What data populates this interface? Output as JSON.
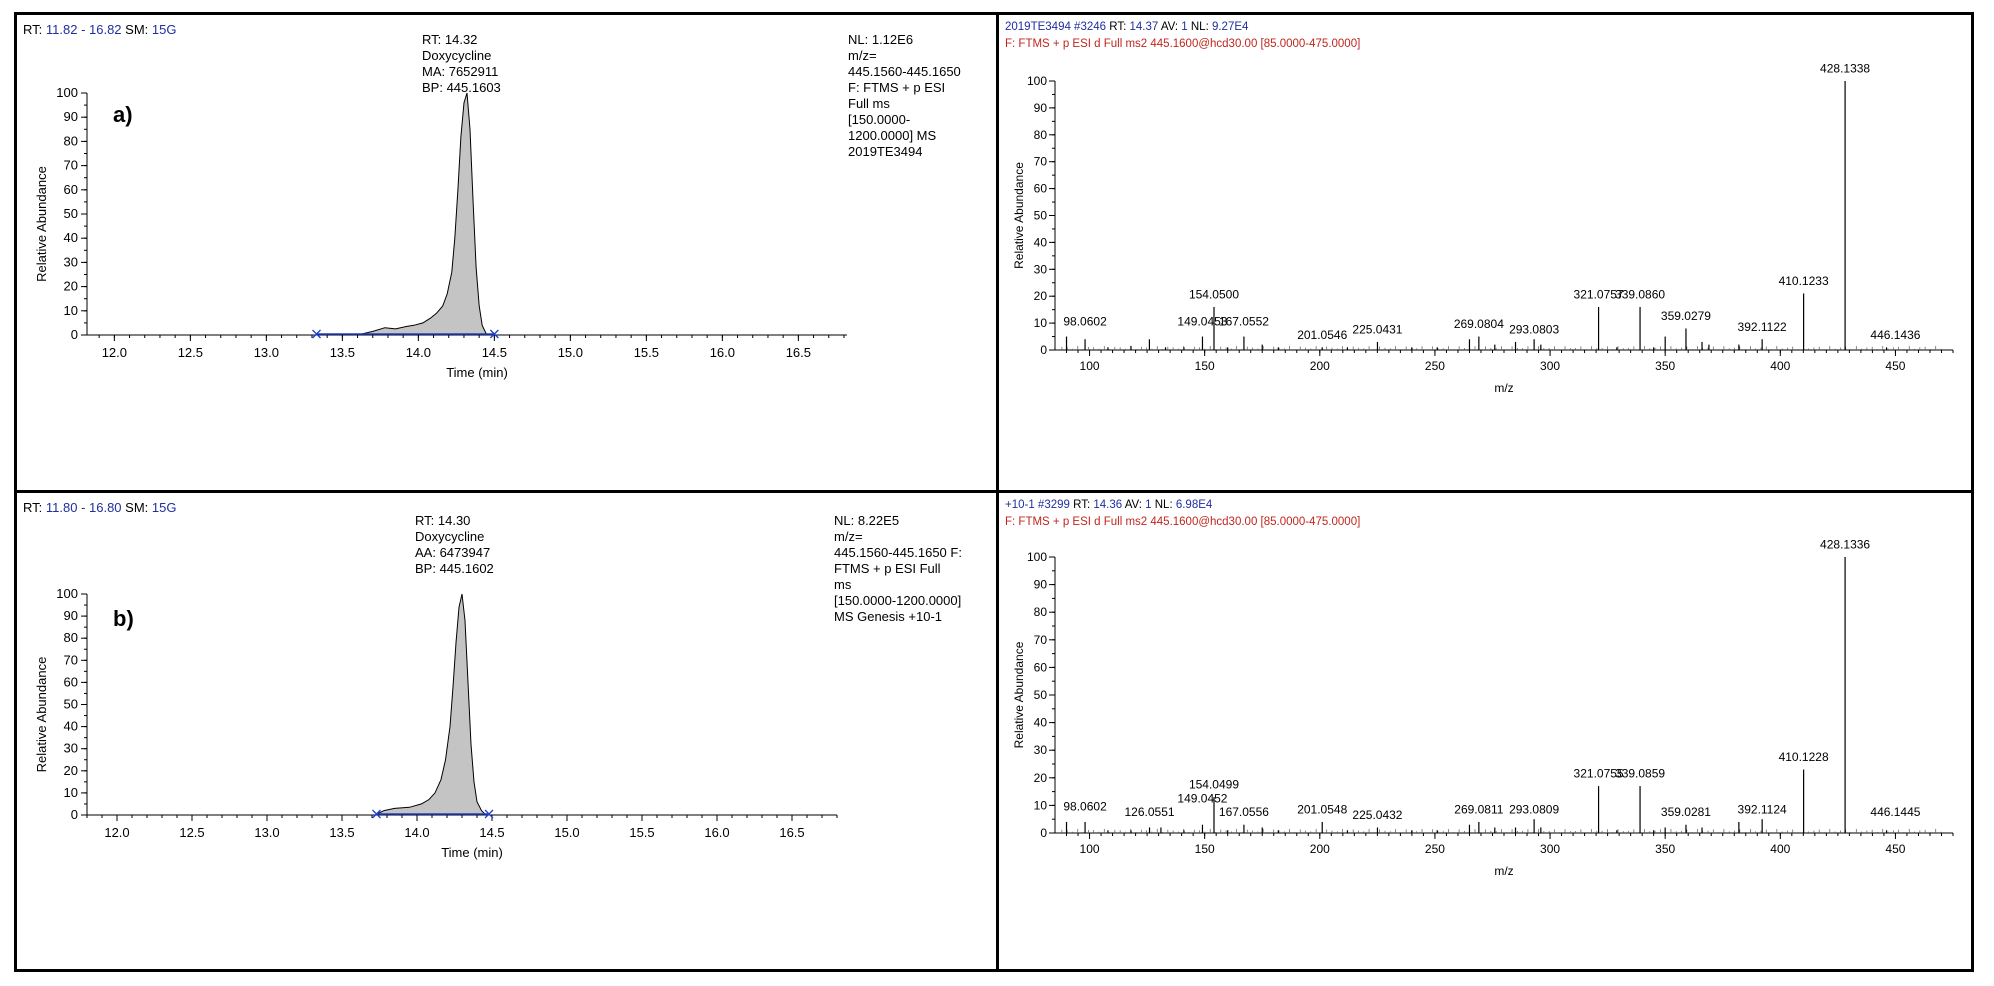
{
  "chart_data": [
    {
      "id": "a-chrom",
      "type": "area",
      "header": {
        "rt_label": "RT:",
        "rt_range": "11.82 - 16.82",
        "sm_label": "SM:",
        "sm_value": "15G"
      },
      "panel_label": "a)",
      "peak_annotation": [
        "RT: 14.32",
        "Doxycycline",
        "MA: 7652911",
        "BP: 445.1603"
      ],
      "info": [
        "NL: 1.12E6",
        "m/z=",
        "445.1560-445.1650",
        "F: FTMS + p ESI",
        "Full ms",
        "[150.0000-",
        "1200.0000]  MS",
        "2019TE3494"
      ],
      "xlabel": "Time (min)",
      "ylabel": "Relative Abundance",
      "xlim": [
        11.82,
        16.82
      ],
      "ylim": [
        0,
        100
      ],
      "xticks": [
        "12.0",
        "12.5",
        "13.0",
        "13.5",
        "14.0",
        "14.5",
        "15.0",
        "15.5",
        "16.0",
        "16.5"
      ],
      "yticks": [
        "0",
        "10",
        "20",
        "30",
        "40",
        "50",
        "60",
        "70",
        "80",
        "90",
        "100"
      ],
      "trace": {
        "x": [
          13.6,
          13.7,
          13.78,
          13.85,
          13.92,
          13.97,
          14.03,
          14.08,
          14.12,
          14.16,
          14.19,
          14.22,
          14.24,
          14.26,
          14.28,
          14.3,
          14.32,
          14.34,
          14.36,
          14.38,
          14.4,
          14.42,
          14.45
        ],
        "y": [
          0,
          1.5,
          3,
          2.5,
          3.5,
          4,
          5,
          7,
          9,
          12,
          17,
          26,
          40,
          60,
          82,
          96,
          100,
          85,
          55,
          28,
          12,
          4,
          0
        ]
      },
      "baseline_markers": [
        13.33,
        14.5
      ]
    },
    {
      "id": "a-ms",
      "type": "bar",
      "header": {
        "scan": "2019TE3494 #3246",
        "rt_label": "RT:",
        "rt": "14.37",
        "av_label": "AV:",
        "av": "1",
        "nl_label": "NL:",
        "nl": "9.27E4"
      },
      "filter": "F: FTMS + p ESI d Full ms2 445.1600@hcd30.00 [85.0000-475.0000]",
      "xlabel": "m/z",
      "ylabel": "Relative Abundance",
      "xlim": [
        85,
        475
      ],
      "ylim": [
        0,
        100
      ],
      "xticks": [
        "100",
        "150",
        "200",
        "250",
        "300",
        "350",
        "400",
        "450"
      ],
      "yticks": [
        "0",
        "10",
        "20",
        "30",
        "40",
        "50",
        "60",
        "70",
        "80",
        "90",
        "100"
      ],
      "peaks": {
        "mz": [
          90.0,
          98.0602,
          108.0,
          118.0,
          126.0,
          133.0,
          141.0,
          149.0453,
          154.05,
          160.0,
          167.0552,
          175.0,
          182.0,
          201.0546,
          212.0,
          225.0431,
          240.0,
          251.0,
          265.0,
          269.0804,
          276.0,
          285.0,
          293.0803,
          296.0,
          321.0757,
          329.0,
          339.086,
          345.0,
          350.0,
          359.0279,
          366.0,
          369.0,
          382.0,
          392.1122,
          410.1233,
          428.1338,
          446.1436
        ],
        "intensity": [
          5,
          4,
          1,
          1.5,
          4,
          1,
          1,
          5,
          16,
          1,
          5,
          2,
          1,
          1,
          1,
          3,
          1,
          1,
          4,
          5,
          2,
          3,
          4,
          2,
          16,
          1,
          16,
          1,
          5,
          8,
          3,
          2,
          2,
          4,
          21,
          100,
          1
        ]
      },
      "labels": [
        {
          "mz": 98.0602,
          "text": "98.0602",
          "y": 8
        },
        {
          "mz": 149.0453,
          "text": "149.0453",
          "y": 8
        },
        {
          "mz": 154.05,
          "text": "154.0500",
          "y": 18
        },
        {
          "mz": 167.0552,
          "text": "167.0552",
          "y": 8
        },
        {
          "mz": 201.0546,
          "text": "201.0546",
          "y": 3
        },
        {
          "mz": 225.0431,
          "text": "225.0431",
          "y": 5
        },
        {
          "mz": 269.0804,
          "text": "269.0804",
          "y": 7
        },
        {
          "mz": 293.0803,
          "text": "293.0803",
          "y": 5
        },
        {
          "mz": 321.0757,
          "text": "321.0757",
          "y": 18
        },
        {
          "mz": 339.086,
          "text": "339.0860",
          "y": 18
        },
        {
          "mz": 359.0279,
          "text": "359.0279",
          "y": 10
        },
        {
          "mz": 392.1122,
          "text": "392.1122",
          "y": 6
        },
        {
          "mz": 410.1233,
          "text": "410.1233",
          "y": 23
        },
        {
          "mz": 428.1338,
          "text": "428.1338",
          "y": 102
        },
        {
          "mz": 450.0,
          "text": "446.1436",
          "y": 3
        }
      ]
    },
    {
      "id": "b-chrom",
      "type": "area",
      "header": {
        "rt_label": "RT:",
        "rt_range": "11.80 - 16.80",
        "sm_label": "SM:",
        "sm_value": "15G"
      },
      "panel_label": "b)",
      "peak_annotation": [
        "RT: 14.30",
        "Doxycycline",
        "AA: 6473947",
        "BP: 445.1602"
      ],
      "info": [
        "NL: 8.22E5",
        "m/z=",
        "445.1560-445.1650 F:",
        "FTMS + p ESI Full",
        "ms",
        "[150.0000-1200.0000]",
        "MS  Genesis +10-1"
      ],
      "xlabel": "Time (min)",
      "ylabel": "Relative Abundance",
      "xlim": [
        11.8,
        16.8
      ],
      "ylim": [
        0,
        100
      ],
      "xticks": [
        "12.0",
        "12.5",
        "13.0",
        "13.5",
        "14.0",
        "14.5",
        "15.0",
        "15.5",
        "16.0",
        "16.5"
      ],
      "yticks": [
        "0",
        "10",
        "20",
        "30",
        "40",
        "50",
        "60",
        "70",
        "80",
        "90",
        "100"
      ],
      "trace": {
        "x": [
          13.72,
          13.78,
          13.85,
          13.95,
          14.03,
          14.08,
          14.12,
          14.16,
          14.19,
          14.22,
          14.24,
          14.26,
          14.28,
          14.3,
          14.32,
          14.34,
          14.36,
          14.38,
          14.4,
          14.43,
          14.46
        ],
        "y": [
          0,
          2,
          3,
          3.5,
          5,
          7,
          10,
          16,
          25,
          40,
          58,
          78,
          94,
          100,
          88,
          60,
          32,
          15,
          6,
          2,
          0
        ]
      },
      "baseline_markers": [
        13.73,
        14.48
      ]
    },
    {
      "id": "b-ms",
      "type": "bar",
      "header": {
        "scan": "+10-1 #3299",
        "rt_label": "RT:",
        "rt": "14.36",
        "av_label": "AV:",
        "av": "1",
        "nl_label": "NL:",
        "nl": "6.98E4"
      },
      "filter": "F: FTMS + p ESI d Full ms2 445.1600@hcd30.00 [85.0000-475.0000]",
      "xlabel": "m/z",
      "ylabel": "Relative Abundance",
      "xlim": [
        85,
        475
      ],
      "ylim": [
        0,
        100
      ],
      "xticks": [
        "100",
        "150",
        "200",
        "250",
        "300",
        "350",
        "400",
        "450"
      ],
      "yticks": [
        "0",
        "10",
        "20",
        "30",
        "40",
        "50",
        "60",
        "70",
        "80",
        "90",
        "100"
      ],
      "peaks": {
        "mz": [
          90.0,
          98.0602,
          108.0,
          118.0,
          126.0551,
          131.0,
          141.0,
          149.0452,
          154.0499,
          160.0,
          167.0556,
          175.0,
          182.0,
          201.0548,
          212.0,
          225.0432,
          240.0,
          251.0,
          265.0,
          269.0811,
          276.0,
          285.0,
          293.0809,
          296.0,
          321.0755,
          329.0,
          339.0859,
          345.0,
          350.0,
          359.0281,
          366.0,
          382.0,
          392.1124,
          410.1228,
          428.1336,
          446.1445
        ],
        "intensity": [
          4,
          4,
          1,
          1,
          2,
          2,
          1,
          3,
          13,
          1,
          3,
          2,
          1,
          4,
          1,
          2,
          1,
          1,
          3,
          4,
          2,
          2,
          5,
          2,
          17,
          1,
          17,
          1,
          2,
          3,
          2,
          4,
          5,
          23,
          100,
          1
        ]
      },
      "labels": [
        {
          "mz": 98.0602,
          "text": "98.0602",
          "y": 7
        },
        {
          "mz": 126.0551,
          "text": "126.0551",
          "y": 5
        },
        {
          "mz": 149.0452,
          "text": "149.0452",
          "y": 10
        },
        {
          "mz": 154.0499,
          "text": "154.0499",
          "y": 15
        },
        {
          "mz": 167.0556,
          "text": "167.0556",
          "y": 5
        },
        {
          "mz": 201.0548,
          "text": "201.0548",
          "y": 6
        },
        {
          "mz": 225.0432,
          "text": "225.0432",
          "y": 4
        },
        {
          "mz": 269.0811,
          "text": "269.0811",
          "y": 6
        },
        {
          "mz": 293.0809,
          "text": "293.0809",
          "y": 6
        },
        {
          "mz": 321.0755,
          "text": "321.0755",
          "y": 19
        },
        {
          "mz": 339.0859,
          "text": "339.0859",
          "y": 19
        },
        {
          "mz": 359.0281,
          "text": "359.0281",
          "y": 5
        },
        {
          "mz": 392.1124,
          "text": "392.1124",
          "y": 6
        },
        {
          "mz": 410.1228,
          "text": "410.1228",
          "y": 25
        },
        {
          "mz": 428.1336,
          "text": "428.1336",
          "y": 102
        },
        {
          "mz": 450.0,
          "text": "446.1445",
          "y": 5
        }
      ]
    }
  ],
  "colors": {
    "header_value": "#1f2f9f",
    "filter_text": "#c0261e",
    "peak_fill": "#c4c4c4",
    "marker_blue": "#1d3fcf",
    "annotation_green": "#2e8b2e"
  }
}
